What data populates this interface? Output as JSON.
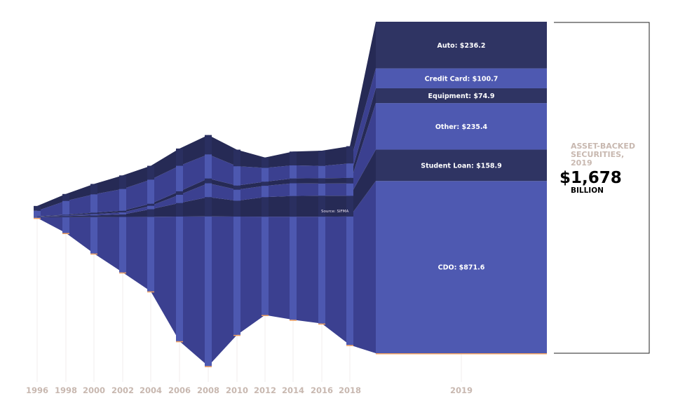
{
  "chart_data": {
    "type": "area",
    "title": "",
    "years": [
      "1996",
      "1998",
      "2000",
      "2002",
      "2004",
      "2006",
      "2008",
      "2010",
      "2012",
      "2014",
      "2016",
      "2018",
      "2019"
    ],
    "series": [
      {
        "name": "CDO",
        "values": [
          2,
          50,
          115,
          175,
          235,
          393,
          472,
          373,
          310,
          325,
          337,
          405,
          871.6
        ],
        "color": "#3b4090"
      },
      {
        "name": "Student Loan",
        "values": [
          2,
          8,
          12,
          18,
          55,
          98,
          140,
          115,
          142,
          150,
          152,
          150,
          158.9
        ],
        "color": "#262a55"
      },
      {
        "name": "Other",
        "values": [
          3,
          5,
          10,
          15,
          25,
          60,
          100,
          80,
          82,
          92,
          88,
          90,
          235.4
        ],
        "color": "#3b4090"
      },
      {
        "name": "Equipment",
        "values": [
          2,
          5,
          10,
          12,
          15,
          25,
          35,
          30,
          30,
          35,
          38,
          40,
          74.9
        ],
        "color": "#262a55"
      },
      {
        "name": "Credit Card",
        "values": [
          40,
          100,
          133,
          158,
          175,
          185,
          175,
          140,
          100,
          95,
          90,
          105,
          100.7
        ],
        "color": "#3b4090"
      },
      {
        "name": "Auto",
        "values": [
          35,
          50,
          75,
          98,
          100,
          125,
          140,
          120,
          75,
          100,
          110,
          125,
          236.2
        ],
        "color": "#262a55"
      }
    ],
    "segment_labels": [
      "CDO: $871.6",
      "Student Loan: $158.9",
      "Other: $235.4",
      "Equipment: $74.9",
      "Credit Card: $100.7",
      "Auto: $236.2"
    ],
    "annotation": "Source: SIFMA"
  },
  "summary": {
    "title": "ASSET-BACKED SECURITIES,",
    "year": "2019",
    "total": "$1,678",
    "unit": "BILLION"
  },
  "colors": {
    "dark": "#262a55",
    "mid": "#3b4090",
    "bright": "#4d58b0",
    "last_light": "#4e59b1",
    "last_dark": "#2f3463",
    "axis_text": "#c8b8b0",
    "underline": "#f0a060"
  }
}
